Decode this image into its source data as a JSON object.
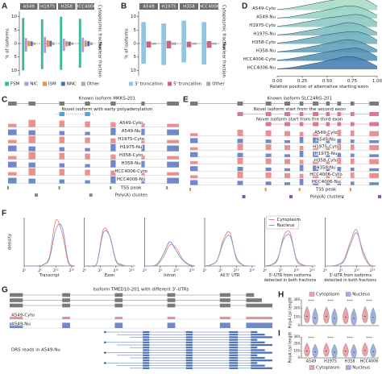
{
  "chart_data": [
    {
      "type": "diverging-bar",
      "panel": "A",
      "ylabel": "% of isoforms",
      "side_labels": [
        "Cytoplasmic fraction",
        "Nuclear fraction"
      ],
      "categories": [
        "A549",
        "H1975",
        "H358",
        "HCC4006"
      ],
      "ylim": [
        -12,
        12
      ],
      "yticks": [
        {
          "value": -10,
          "label": "10"
        },
        {
          "value": -5,
          "label": "5"
        },
        0,
        5,
        10
      ],
      "legend": "bottom",
      "series": [
        {
          "name": "FSM",
          "color": "#3cb89a",
          "values": [
            9.5,
            9.0,
            10.0,
            9.2
          ],
          "nucleus_values": [
            -10.0,
            -9.5,
            -9.8,
            -9.0
          ]
        },
        {
          "name": "NIC",
          "color": "#b59bd0",
          "values": [
            2.0,
            2.5,
            1.8,
            2.2
          ],
          "nucleus_values": [
            -3.0,
            -3.5,
            -2.8,
            -3.2
          ]
        },
        {
          "name": "ISM",
          "color": "#f0883e",
          "values": [
            1.0,
            1.2,
            0.9,
            1.1
          ],
          "nucleus_values": [
            -1.0,
            -1.3,
            -1.1,
            -1.2
          ]
        },
        {
          "name": "NNC",
          "color": "#4a6fb5",
          "values": [
            0.8,
            1.0,
            0.7,
            0.9
          ],
          "nucleus_values": [
            -0.9,
            -1.1,
            -0.8,
            -1.0
          ]
        },
        {
          "name": "Other",
          "color": "#aaaaaa",
          "values": [
            0.4,
            0.5,
            0.4,
            0.5
          ],
          "nucleus_values": [
            -0.5,
            -0.6,
            -0.5,
            -0.6
          ]
        }
      ]
    },
    {
      "type": "diverging-bar",
      "panel": "B",
      "ylabel": "% of isoforms",
      "side_labels": [
        "Cytoplasmic fraction",
        "Nuclear fraction"
      ],
      "categories": [
        "A549",
        "H1975",
        "H358",
        "HCC4006"
      ],
      "ylim": [
        -12,
        12
      ],
      "yticks": [
        {
          "value": -10,
          "label": "10"
        },
        {
          "value": -5,
          "label": "5"
        },
        0,
        5,
        10
      ],
      "legend": "bottom",
      "series": [
        {
          "name": "3' truncation",
          "color": "#8fc6e3",
          "values": [
            8.0,
            7.5,
            8.5,
            8.0
          ],
          "nucleus_values": [
            -7.5,
            -8.0,
            -7.0,
            -7.8
          ]
        },
        {
          "name": "5' truncation",
          "color": "#c9637f",
          "values": [
            0.8,
            1.0,
            0.7,
            0.9
          ],
          "nucleus_values": [
            -1.5,
            -1.8,
            -1.4,
            -1.6
          ]
        },
        {
          "name": "Other",
          "color": "#aaaaaa",
          "values": [
            0.3,
            0.4,
            0.3,
            0.3
          ],
          "nucleus_values": [
            -0.4,
            -0.5,
            -0.4,
            -0.4
          ]
        }
      ]
    },
    {
      "type": "ridgeline",
      "panel": "D",
      "categories": [
        "A549-Cyto",
        "A549-Nu",
        "H1975-Cyto",
        "H1975-Nu",
        "H358-Cyto",
        "H358-Nu",
        "HCC4006-Cyto",
        "HCC4006-Nu"
      ],
      "colors": [
        "#a8dcc9",
        "#9ad3c6",
        "#8ccac4",
        "#7ebfc2",
        "#70b2c0",
        "#62a3bd",
        "#5593b9",
        "#4a82b4"
      ],
      "x": [
        0,
        0.1,
        0.2,
        0.3,
        0.4,
        0.5,
        0.6,
        0.7,
        0.8,
        0.9,
        1
      ],
      "values": [
        [
          0.05,
          0.12,
          0.25,
          0.4,
          0.55,
          0.7,
          0.82,
          0.95,
          1.0,
          0.75,
          0.3
        ],
        [
          0.04,
          0.1,
          0.22,
          0.38,
          0.52,
          0.68,
          0.85,
          0.98,
          0.92,
          0.65,
          0.25
        ],
        [
          0.06,
          0.14,
          0.27,
          0.42,
          0.56,
          0.7,
          0.8,
          0.9,
          0.97,
          0.78,
          0.35
        ],
        [
          0.05,
          0.11,
          0.23,
          0.37,
          0.5,
          0.66,
          0.83,
          1.0,
          0.9,
          0.6,
          0.22
        ],
        [
          0.07,
          0.15,
          0.28,
          0.43,
          0.57,
          0.72,
          0.84,
          0.93,
          0.95,
          0.72,
          0.3
        ],
        [
          0.05,
          0.12,
          0.24,
          0.39,
          0.53,
          0.69,
          0.86,
          0.99,
          0.88,
          0.58,
          0.2
        ],
        [
          0.06,
          0.13,
          0.26,
          0.41,
          0.55,
          0.7,
          0.82,
          0.94,
          0.98,
          0.74,
          0.32
        ],
        [
          0.04,
          0.1,
          0.21,
          0.36,
          0.5,
          0.67,
          0.85,
          1.0,
          0.9,
          0.62,
          0.24
        ]
      ],
      "xlim": [
        0,
        1
      ],
      "xticks": [
        {
          "value": 0,
          "label": "0.00"
        },
        0.25,
        {
          "value": 0.5,
          "label": "0.50"
        },
        0.75,
        {
          "value": 1,
          "label": "1.00"
        }
      ],
      "xlabel": "Relative position of alternative starting exon"
    },
    {
      "type": "line",
      "panel": "F",
      "ylabel": "density",
      "x": [
        0,
        2,
        4,
        6,
        8,
        10,
        12,
        14,
        16
      ],
      "xlim": [
        0,
        16
      ],
      "xticks": [
        {
          "value": 0,
          "label": "2⁰"
        },
        {
          "value": 5,
          "label": "2⁵"
        },
        {
          "value": 10,
          "label": "2¹⁰"
        },
        {
          "value": 15,
          "label": "2¹⁵"
        }
      ],
      "ylim": [
        0,
        0.8
      ],
      "legend": "top-right",
      "series": [
        {
          "name": "Cytoplasm",
          "color": "#e8877f"
        },
        {
          "name": "Nucleus",
          "color": "#7d98d0"
        }
      ],
      "panels": [
        {
          "xlabel": "Transcript",
          "values": [
            [
              0,
              0,
              0,
              0.02,
              0.15,
              0.75,
              0.55,
              0.05,
              0
            ],
            [
              0,
              0,
              0,
              0.02,
              0.12,
              0.6,
              0.65,
              0.08,
              0
            ]
          ]
        },
        {
          "xlabel": "Exon",
          "values": [
            [
              0,
              0,
              0.05,
              0.6,
              0.5,
              0.08,
              0.01,
              0,
              0
            ],
            [
              0,
              0,
              0.05,
              0.55,
              0.5,
              0.1,
              0.02,
              0,
              0
            ]
          ]
        },
        {
          "xlabel": "Intron",
          "values": [
            [
              0,
              0,
              0.02,
              0.15,
              0.35,
              0.3,
              0.12,
              0.03,
              0
            ],
            [
              0,
              0,
              0.03,
              0.2,
              0.4,
              0.25,
              0.1,
              0.02,
              0
            ]
          ]
        },
        {
          "xlabel": "All 5' UTR",
          "values": [
            [
              0,
              0.02,
              0.1,
              0.45,
              0.55,
              0.12,
              0.02,
              0,
              0
            ],
            [
              0,
              0.02,
              0.1,
              0.4,
              0.5,
              0.15,
              0.02,
              0,
              0
            ]
          ]
        },
        {
          "xlabel": "5'-UTR from isoforms detected in both fractions",
          "values": [
            [
              0,
              0.02,
              0.1,
              0.5,
              0.55,
              0.1,
              0.01,
              0,
              0
            ],
            [
              0,
              0.02,
              0.12,
              0.45,
              0.5,
              0.12,
              0.02,
              0,
              0
            ]
          ]
        },
        {
          "xlabel": "3'-UTR from isoforms detected in both fractions",
          "values": [
            [
              0,
              0,
              0.02,
              0.1,
              0.4,
              0.6,
              0.2,
              0.02,
              0
            ],
            [
              0,
              0,
              0.02,
              0.08,
              0.35,
              0.55,
              0.25,
              0.03,
              0
            ]
          ]
        }
      ]
    },
    {
      "type": "violin",
      "panel": "H",
      "ylabel": "PolyA tail length",
      "categories": [
        null,
        null,
        null,
        null
      ],
      "ylim": [
        0,
        300
      ],
      "yticks": [
        0,
        100,
        200,
        300
      ],
      "legend": "top",
      "annotations": [
        "***",
        "***",
        "***",
        "***"
      ],
      "series": [
        {
          "name": "Cytoplasm",
          "color": "#eba3ab",
          "values": [
            110,
            105,
            100,
            110
          ]
        },
        {
          "name": "Nucleus",
          "color": "#9fb0e2",
          "values": [
            90,
            85,
            85,
            95
          ]
        }
      ]
    },
    {
      "type": "violin",
      "panel": "I",
      "ylabel": "PolyA tail length",
      "categories": [
        "A549",
        "H1975",
        "H358",
        "HCC4006"
      ],
      "ylim": [
        0,
        300
      ],
      "yticks": [
        0,
        100,
        200,
        300
      ],
      "legend": "bottom",
      "annotations": [
        "***",
        "***",
        "***",
        "***"
      ],
      "series": [
        {
          "name": "Cytoplasm",
          "color": "#eba3ab",
          "values": [
            100,
            100,
            95,
            105
          ]
        },
        {
          "name": "Nucleus",
          "color": "#9fb0e2",
          "values": [
            85,
            80,
            80,
            90
          ]
        }
      ]
    }
  ],
  "tracks": {
    "C": {
      "panel": "C",
      "known": "Known isoform MKKS-201",
      "novel": [
        "Novel isoform with early polyadenylation"
      ],
      "samples": [
        "A549-Cyto",
        "A549-Nu",
        "H1975-Cyto",
        "H1975-Nu",
        "H358-Cyto",
        "H358-Nu",
        "HCC4006-Cyto",
        "HCC4006-Nu"
      ],
      "footer": [
        "TSS peak",
        "Poly(A) cluster"
      ]
    },
    "E": {
      "panel": "E",
      "known": "Known isoform SLC24RG-201",
      "novel": [
        "Novel isoform start from the second exon",
        "Novel isoform start from the third exon"
      ],
      "samples": [
        "A549-Cyto",
        "A549-Nu",
        "H1975-Cyto",
        "H1975-Nu",
        "H358-Cyto",
        "H358-Nu",
        "HCC4006-Cyto",
        "HCC4006-Nu"
      ],
      "footer": [
        "TSS peak",
        "Poly(A) cluster"
      ]
    },
    "G": {
      "panel": "G",
      "title": "Isoform TMED10-201 with different 3'-UTRs",
      "samples": [
        "A549-Cyto",
        "A549-Nu"
      ],
      "reads_label": "DRS reads in A549-Nu"
    }
  }
}
